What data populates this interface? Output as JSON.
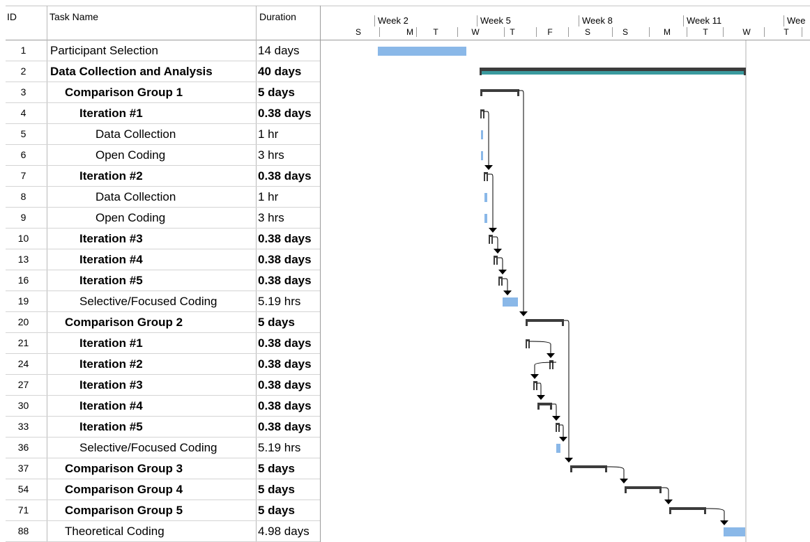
{
  "columns": {
    "id": "ID",
    "name": "Task Name",
    "duration": "Duration"
  },
  "timescale": {
    "weeks": [
      "Week 2",
      "Week 5",
      "Week 8",
      "Week 11",
      "Wee"
    ],
    "days": [
      "S",
      "M",
      "T",
      "W",
      "T",
      "F",
      "S",
      "S",
      "M",
      "T",
      "W",
      "T"
    ]
  },
  "tasks": [
    {
      "id": "1",
      "name": "Participant Selection",
      "duration": "14 days",
      "bold": false,
      "indent": 0
    },
    {
      "id": "2",
      "name": "Data Collection and Analysis",
      "duration": "40 days",
      "bold": true,
      "indent": 0
    },
    {
      "id": "3",
      "name": "Comparison Group 1",
      "duration": "5 days",
      "bold": true,
      "indent": 1
    },
    {
      "id": "4",
      "name": "Iteration #1",
      "duration": "0.38 days",
      "bold": true,
      "indent": 2
    },
    {
      "id": "5",
      "name": "Data Collection",
      "duration": "1 hr",
      "bold": false,
      "indent": 3
    },
    {
      "id": "6",
      "name": "Open Coding",
      "duration": "3 hrs",
      "bold": false,
      "indent": 3
    },
    {
      "id": "7",
      "name": "Iteration #2",
      "duration": "0.38 days",
      "bold": true,
      "indent": 2
    },
    {
      "id": "8",
      "name": "Data Collection",
      "duration": "1 hr",
      "bold": false,
      "indent": 3
    },
    {
      "id": "9",
      "name": "Open Coding",
      "duration": "3 hrs",
      "bold": false,
      "indent": 3
    },
    {
      "id": "10",
      "name": "Iteration #3",
      "duration": "0.38 days",
      "bold": true,
      "indent": 2
    },
    {
      "id": "13",
      "name": "Iteration #4",
      "duration": "0.38 days",
      "bold": true,
      "indent": 2
    },
    {
      "id": "16",
      "name": "Iteration #5",
      "duration": "0.38 days",
      "bold": true,
      "indent": 2
    },
    {
      "id": "19",
      "name": "Selective/Focused Coding",
      "duration": "5.19 hrs",
      "bold": false,
      "indent": 2
    },
    {
      "id": "20",
      "name": "Comparison Group 2",
      "duration": "5 days",
      "bold": true,
      "indent": 1
    },
    {
      "id": "21",
      "name": "Iteration #1",
      "duration": "0.38 days",
      "bold": true,
      "indent": 2
    },
    {
      "id": "24",
      "name": "Iteration #2",
      "duration": "0.38 days",
      "bold": true,
      "indent": 2
    },
    {
      "id": "27",
      "name": "Iteration #3",
      "duration": "0.38 days",
      "bold": true,
      "indent": 2
    },
    {
      "id": "30",
      "name": "Iteration #4",
      "duration": "0.38 days",
      "bold": true,
      "indent": 2
    },
    {
      "id": "33",
      "name": "Iteration #5",
      "duration": "0.38 days",
      "bold": true,
      "indent": 2
    },
    {
      "id": "36",
      "name": "Selective/Focused Coding",
      "duration": "5.19 hrs",
      "bold": false,
      "indent": 2
    },
    {
      "id": "37",
      "name": "Comparison Group 3",
      "duration": "5 days",
      "bold": true,
      "indent": 1
    },
    {
      "id": "54",
      "name": "Comparison Group 4",
      "duration": "5 days",
      "bold": true,
      "indent": 1
    },
    {
      "id": "71",
      "name": "Comparison Group 5",
      "duration": "5 days",
      "bold": true,
      "indent": 1
    },
    {
      "id": "88",
      "name": "Theoretical Coding",
      "duration": "4.98 days",
      "bold": false,
      "indent": 1
    }
  ],
  "colors": {
    "task_bar": "#8ab8e8",
    "project_summary": "#3a9a9e",
    "summary": "#3c3c3c",
    "link": "#000000"
  }
}
